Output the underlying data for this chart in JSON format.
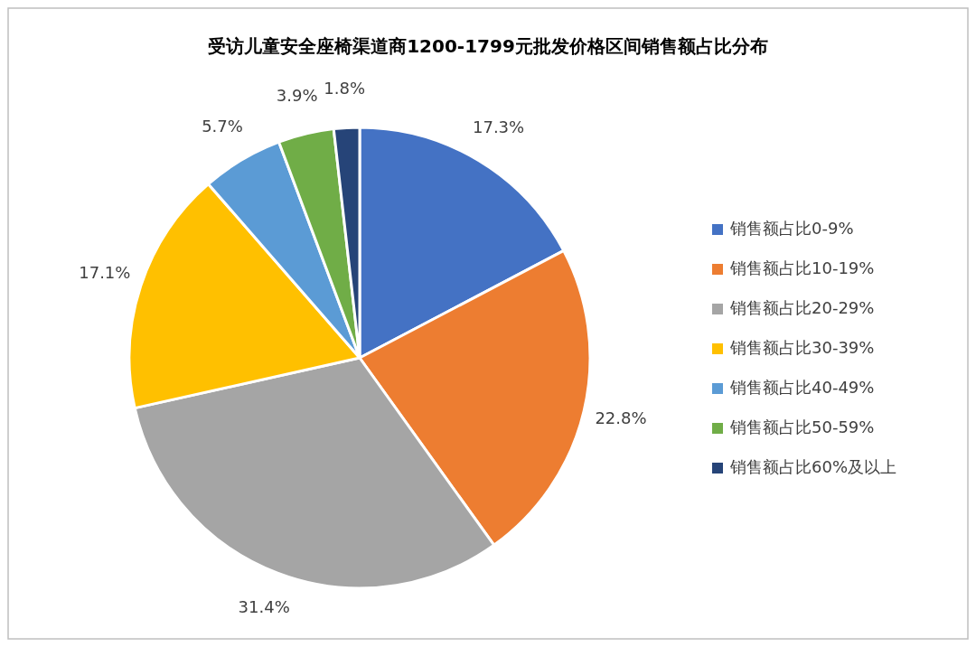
{
  "chart_data": {
    "type": "pie",
    "title": "受访儿童安全座椅渠道商1200-1799元批发价格区间销售额占比分布",
    "categories": [
      "销售额占比0-9%",
      "销售额占比10-19%",
      "销售额占比20-29%",
      "销售额占比30-39%",
      "销售额占比40-49%",
      "销售额占比50-59%",
      "销售额占比60%及以上"
    ],
    "values": [
      17.3,
      22.8,
      31.4,
      17.1,
      5.7,
      3.9,
      1.8
    ],
    "colors": [
      "#4472c4",
      "#ed7d31",
      "#a5a5a5",
      "#ffc000",
      "#5b9bd5",
      "#70ad47",
      "#264478"
    ],
    "value_labels": [
      "17.3%",
      "22.8%",
      "31.4%",
      "17.1%",
      "5.7%",
      "3.9%",
      "1.8%"
    ],
    "legend": "right"
  }
}
